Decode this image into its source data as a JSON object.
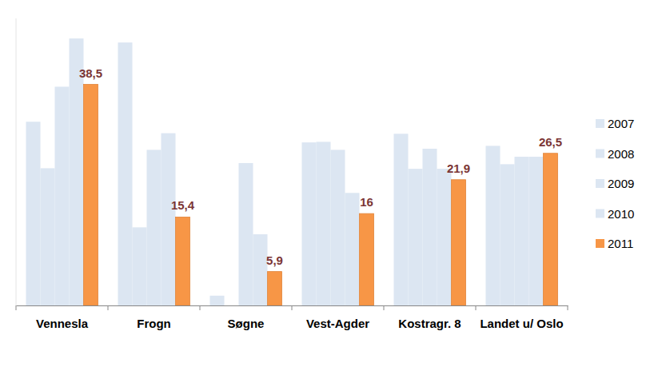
{
  "chart_data": {
    "type": "bar",
    "categories": [
      "Vennesla",
      "Frogn",
      "Søgne",
      "Vest-Agder",
      "Kostragr. 8",
      "Landet u/ Oslo"
    ],
    "series": [
      {
        "name": "2007",
        "color": "#dce6f2",
        "values": [
          32.0,
          45.8,
          1.7,
          28.4,
          29.9,
          27.8
        ]
      },
      {
        "name": "2008",
        "color": "#dce6f2",
        "values": [
          23.9,
          13.6,
          0,
          28.5,
          23.8,
          24.6
        ]
      },
      {
        "name": "2009",
        "color": "#dce6f2",
        "values": [
          38.1,
          27.1,
          24.8,
          27.1,
          27.3,
          25.9
        ]
      },
      {
        "name": "2010",
        "color": "#dce6f2",
        "values": [
          46.5,
          30.0,
          12.4,
          19.6,
          23.8,
          25.9
        ]
      },
      {
        "name": "2011",
        "color": "#f79646",
        "data_labels": true,
        "values": [
          38.5,
          15.4,
          5.9,
          16,
          21.9,
          26.5
        ],
        "value_labels": [
          "38,5",
          "15,4",
          "5,9",
          "16",
          "21,9",
          "26,5"
        ]
      }
    ],
    "ylim": [
      0,
      50
    ],
    "grid": false,
    "legend": "right",
    "tick_labels": "x"
  }
}
